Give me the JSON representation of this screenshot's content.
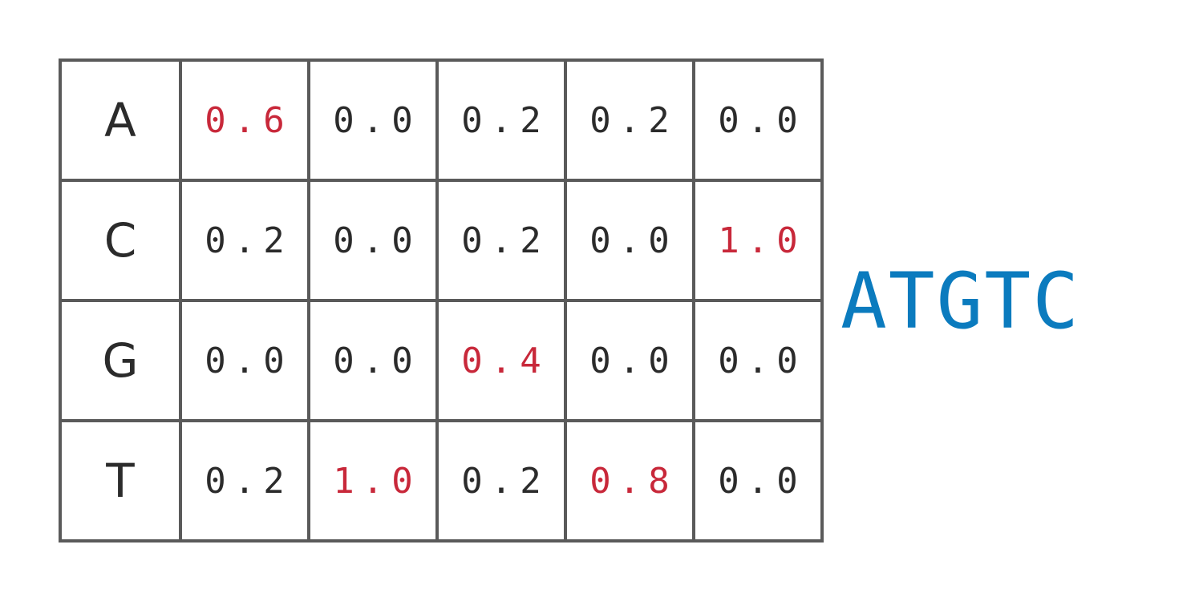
{
  "matrix": {
    "rows": [
      {
        "base": "A",
        "values": [
          "0.6",
          "0.0",
          "0.2",
          "0.2",
          "0.0"
        ],
        "highlight": [
          true,
          false,
          false,
          false,
          false
        ]
      },
      {
        "base": "C",
        "values": [
          "0.2",
          "0.0",
          "0.2",
          "0.0",
          "1.0"
        ],
        "highlight": [
          false,
          false,
          false,
          false,
          true
        ]
      },
      {
        "base": "G",
        "values": [
          "0.0",
          "0.0",
          "0.4",
          "0.0",
          "0.0"
        ],
        "highlight": [
          false,
          false,
          true,
          false,
          false
        ]
      },
      {
        "base": "T",
        "values": [
          "0.2",
          "1.0",
          "0.2",
          "0.8",
          "0.0"
        ],
        "highlight": [
          false,
          true,
          false,
          true,
          false
        ]
      }
    ]
  },
  "consensus": "ATGTC",
  "colors": {
    "highlight": "#c8283a",
    "consensus": "#0b7bbe",
    "grid": "#5a5a5a",
    "text": "#2b2b2b"
  }
}
